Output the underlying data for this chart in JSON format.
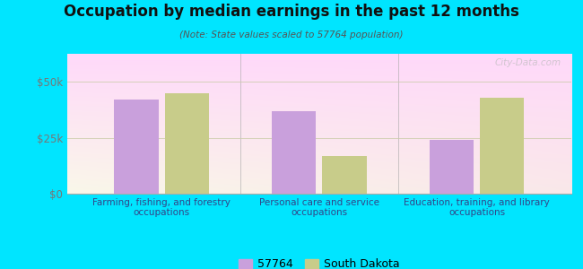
{
  "title": "Occupation by median earnings in the past 12 months",
  "subtitle": "(Note: State values scaled to 57764 population)",
  "categories": [
    "Farming, fishing, and forestry\noccupations",
    "Personal care and service\noccupations",
    "Education, training, and library\noccupations"
  ],
  "values_57764": [
    42000,
    37000,
    24000
  ],
  "values_sd": [
    45000,
    17000,
    43000
  ],
  "color_57764": "#c9a0dc",
  "color_sd": "#c8cc8a",
  "background_outer": "#00e5ff",
  "ylim": [
    0,
    62500
  ],
  "yticks": [
    0,
    25000,
    50000
  ],
  "ytick_labels": [
    "$0",
    "$25k",
    "$50k"
  ],
  "legend_label_57764": "57764",
  "legend_label_sd": "South Dakota",
  "bar_width": 0.28,
  "watermark": "City-Data.com"
}
